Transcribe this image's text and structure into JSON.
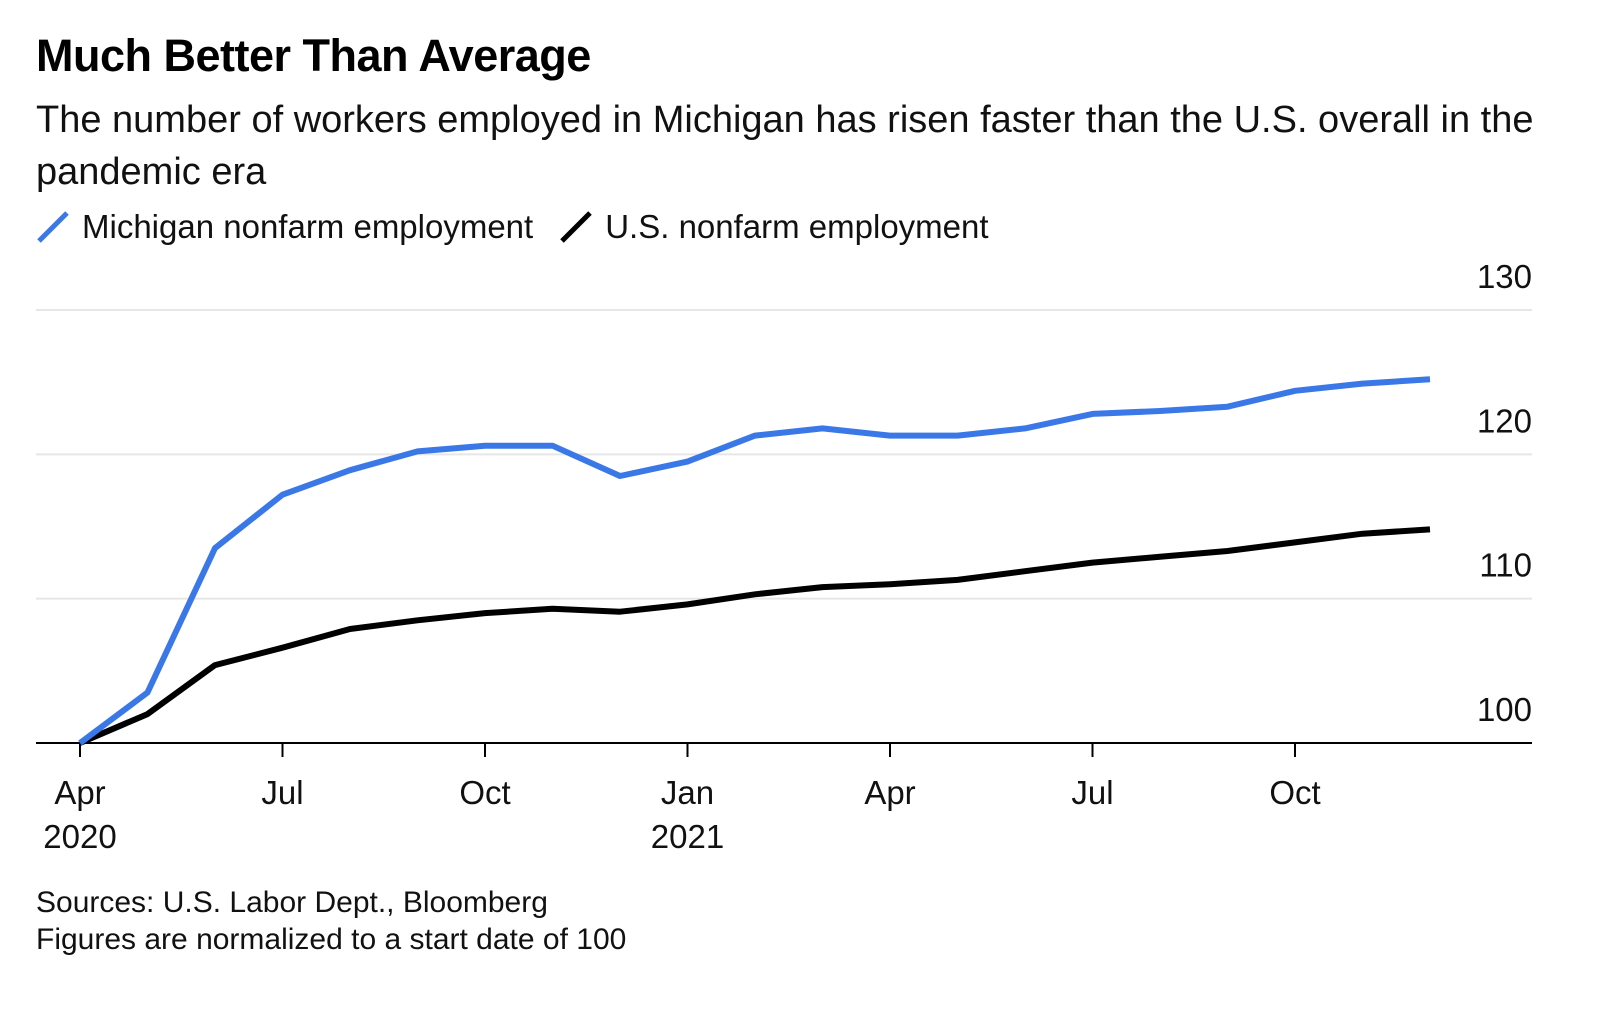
{
  "colors": {
    "michigan": "#3b78e7",
    "us": "#000000",
    "grid": "#e6e6e6",
    "axis": "#000000"
  },
  "chart_data": {
    "type": "line",
    "title": "Much Better Than Average",
    "subtitle": "The number of workers employed in Michigan has risen faster than the U.S. overall in the pandemic era",
    "x": [
      "2020-04",
      "2020-05",
      "2020-06",
      "2020-07",
      "2020-08",
      "2020-09",
      "2020-10",
      "2020-11",
      "2020-12",
      "2021-01",
      "2021-02",
      "2021-03",
      "2021-04",
      "2021-05",
      "2021-06",
      "2021-07",
      "2021-08",
      "2021-09",
      "2021-10",
      "2021-11",
      "2021-12"
    ],
    "series": [
      {
        "name": "Michigan nonfarm employment",
        "color": "#3b78e7",
        "values": [
          100,
          103.5,
          113.5,
          117.2,
          118.9,
          120.2,
          120.6,
          120.6,
          118.5,
          119.5,
          121.3,
          121.8,
          121.3,
          121.3,
          121.8,
          122.8,
          123.0,
          123.3,
          124.4,
          124.9,
          125.2
        ]
      },
      {
        "name": "U.S. nonfarm employment",
        "color": "#000000",
        "values": [
          100,
          102.0,
          105.4,
          106.6,
          107.9,
          108.5,
          109.0,
          109.3,
          109.1,
          109.6,
          110.3,
          110.8,
          111.0,
          111.3,
          111.9,
          112.5,
          112.9,
          113.3,
          113.9,
          114.5,
          114.8
        ]
      }
    ],
    "ylim": [
      100,
      130
    ],
    "yticks": [
      "100",
      "110",
      "120",
      "130"
    ],
    "xticks": [
      {
        "x": "2020-04",
        "label": "Apr",
        "label2": "2020"
      },
      {
        "x": "2020-07",
        "label": "Jul",
        "label2": ""
      },
      {
        "x": "2020-10",
        "label": "Oct",
        "label2": ""
      },
      {
        "x": "2021-01",
        "label": "Jan",
        "label2": "2021"
      },
      {
        "x": "2021-04",
        "label": "Apr",
        "label2": ""
      },
      {
        "x": "2021-07",
        "label": "Jul",
        "label2": ""
      },
      {
        "x": "2021-10",
        "label": "Oct",
        "label2": ""
      }
    ],
    "grid": true,
    "legend_position": "top-left",
    "xlabel": "",
    "ylabel": ""
  },
  "footer": {
    "sources": "Sources: U.S. Labor Dept., Bloomberg",
    "note": "Figures are normalized to a start date of 100"
  }
}
